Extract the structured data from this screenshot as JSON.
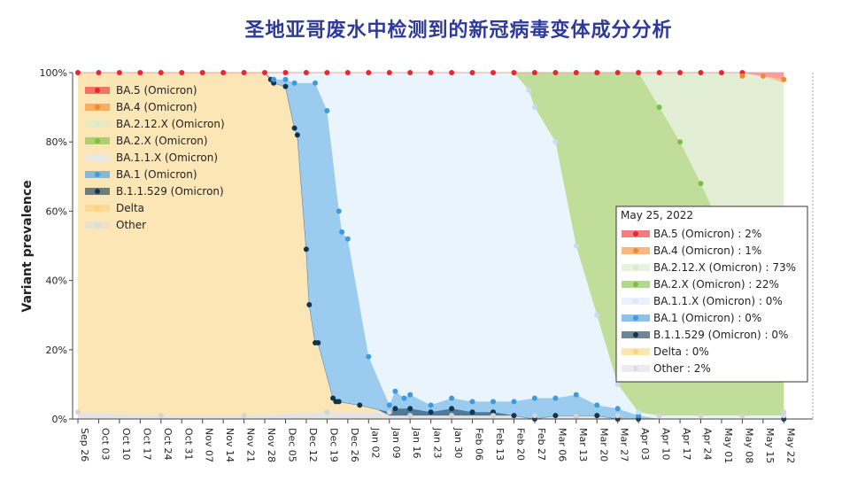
{
  "chart_data": {
    "type": "area",
    "title": "圣地亚哥废水中检测到的新冠病毒变体成分分析",
    "ylabel": "Variant prevalence",
    "xlabel": "",
    "ylim": [
      0,
      100
    ],
    "yticks": [
      "0%",
      "20%",
      "40%",
      "60%",
      "80%",
      "100%"
    ],
    "xtick_labels": [
      "Sep 26",
      "Oct 03",
      "Oct 10",
      "Oct 17",
      "Oct 24",
      "Oct 31",
      "Nov 07",
      "Nov 14",
      "Nov 21",
      "Nov 28",
      "Dec 05",
      "Dec 12",
      "Dec 19",
      "Dec 26",
      "Jan 02",
      "Jan 09",
      "Jan 16",
      "Jan 23",
      "Jan 30",
      "Feb 06",
      "Feb 13",
      "Feb 20",
      "Feb 27",
      "Mar 06",
      "Mar 13",
      "Mar 20",
      "Mar 27",
      "Apr 03",
      "Apr 10",
      "Apr 17",
      "Apr 24",
      "May 01",
      "May 08",
      "May 15",
      "May 22"
    ],
    "legend_placement": "top-left",
    "grid": false,
    "series_order_bottom_to_top": [
      "Other",
      "Delta",
      "B.1.1.529 (Omicron)",
      "BA.1 (Omicron)",
      "BA.1.1.X (Omicron)",
      "BA.2.X (Omicron)",
      "BA.2.12.X (Omicron)",
      "BA.4 (Omicron)",
      "BA.5 (Omicron)"
    ],
    "cumulative_boundaries": {
      "other": [
        [
          0,
          2
        ],
        [
          28,
          1
        ],
        [
          56,
          1
        ],
        [
          84,
          2
        ],
        [
          105,
          2
        ],
        [
          112,
          1
        ],
        [
          126,
          1
        ],
        [
          140,
          1
        ],
        [
          154,
          1
        ],
        [
          168,
          1
        ],
        [
          182,
          1
        ],
        [
          196,
          1
        ],
        [
          210,
          1
        ],
        [
          224,
          1
        ],
        [
          238,
          2
        ]
      ],
      "delta": [
        [
          0,
          100
        ],
        [
          56,
          100
        ],
        [
          63,
          100
        ],
        [
          70,
          99
        ],
        [
          73,
          90
        ],
        [
          80,
          70
        ],
        [
          84,
          20
        ],
        [
          87,
          5
        ],
        [
          91,
          5
        ],
        [
          98,
          4
        ],
        [
          105,
          1
        ],
        [
          126,
          1
        ],
        [
          168,
          1
        ],
        [
          238,
          1
        ]
      ],
      "b11529": [
        [
          0,
          100
        ],
        [
          63,
          100
        ],
        [
          65,
          98
        ],
        [
          66,
          97
        ],
        [
          70,
          96
        ],
        [
          73,
          84
        ],
        [
          74,
          82
        ],
        [
          77,
          49
        ],
        [
          78,
          33
        ],
        [
          80,
          22
        ],
        [
          81,
          22
        ],
        [
          86,
          6
        ],
        [
          87,
          5
        ],
        [
          88,
          5
        ],
        [
          95,
          4
        ],
        [
          105,
          2
        ],
        [
          107,
          3
        ],
        [
          112,
          3
        ],
        [
          119,
          2
        ],
        [
          126,
          3
        ],
        [
          133,
          2
        ],
        [
          140,
          2
        ],
        [
          147,
          1
        ],
        [
          154,
          0
        ],
        [
          161,
          1
        ],
        [
          168,
          1
        ],
        [
          175,
          1
        ],
        [
          182,
          0
        ],
        [
          189,
          0
        ],
        [
          238,
          0
        ]
      ],
      "ba1": [
        [
          0,
          100
        ],
        [
          63,
          100
        ],
        [
          66,
          98
        ],
        [
          70,
          98
        ],
        [
          73,
          97
        ],
        [
          80,
          97
        ],
        [
          84,
          89
        ],
        [
          88,
          60
        ],
        [
          89,
          54
        ],
        [
          91,
          52
        ],
        [
          98,
          18
        ],
        [
          105,
          4
        ],
        [
          107,
          8
        ],
        [
          110,
          6
        ],
        [
          112,
          7
        ],
        [
          119,
          4
        ],
        [
          126,
          6
        ],
        [
          133,
          5
        ],
        [
          140,
          5
        ],
        [
          147,
          5
        ],
        [
          154,
          6
        ],
        [
          161,
          6
        ],
        [
          168,
          7
        ],
        [
          175,
          4
        ],
        [
          182,
          3
        ],
        [
          189,
          1
        ],
        [
          196,
          0
        ],
        [
          238,
          0
        ]
      ],
      "ba1x": [
        [
          0,
          100
        ],
        [
          147,
          100
        ],
        [
          152,
          95
        ],
        [
          154,
          90
        ],
        [
          161,
          80
        ],
        [
          168,
          50
        ],
        [
          175,
          30
        ],
        [
          182,
          10
        ],
        [
          189,
          2
        ],
        [
          196,
          1
        ],
        [
          238,
          1
        ]
      ],
      "ba2x": [
        [
          0,
          100
        ],
        [
          189,
          100
        ],
        [
          196,
          90
        ],
        [
          203,
          80
        ],
        [
          210,
          68
        ],
        [
          217,
          55
        ],
        [
          224,
          40
        ],
        [
          231,
          28
        ],
        [
          238,
          24
        ]
      ],
      "ba212x": [
        [
          0,
          100
        ],
        [
          224,
          100
        ],
        [
          231,
          99
        ],
        [
          238,
          97
        ]
      ],
      "ba4": [
        [
          0,
          100
        ],
        [
          224,
          100
        ],
        [
          231,
          99
        ],
        [
          238,
          98
        ]
      ],
      "ba5": [
        [
          0,
          100
        ],
        [
          238,
          100
        ]
      ]
    },
    "series": [
      {
        "name": "BA.5 (Omicron)",
        "color": "#e8262f",
        "value_may25": "2%"
      },
      {
        "name": "BA.4 (Omicron)",
        "color": "#f5872c",
        "value_may25": "1%"
      },
      {
        "name": "BA.2.12.X (Omicron)",
        "color": "#d8ebc8",
        "value_may25": "73%"
      },
      {
        "name": "BA.2.X (Omicron)",
        "color": "#7ac143",
        "value_may25": "22%"
      },
      {
        "name": "BA.1.1.X (Omicron)",
        "color": "#dbe9f8",
        "value_may25": "0%"
      },
      {
        "name": "BA.1 (Omicron)",
        "color": "#3d9ae0",
        "value_may25": "0%"
      },
      {
        "name": "B.1.1.529 (Omicron)",
        "color": "#12354f",
        "value_may25": "0%"
      },
      {
        "name": "Delta",
        "color": "#fcd27b",
        "value_may25": "0%"
      },
      {
        "name": "Other",
        "color": "#dddddd",
        "value_may25": "2%"
      }
    ],
    "tooltip": {
      "date": "May 25, 2022",
      "rows": [
        "BA.5 (Omicron) : 2%",
        "BA.4 (Omicron) : 1%",
        "BA.2.12.X (Omicron) : 73%",
        "BA.2.X (Omicron) : 22%",
        "BA.1.1.X (Omicron) : 0%",
        "BA.1 (Omicron) : 0%",
        "B.1.1.529 (Omicron) : 0%",
        "Delta : 0%",
        "Other : 2%"
      ]
    }
  },
  "colors": {
    "title": "#2d3a9b",
    "other": "#e4e4e4",
    "delta": "#fde6b6",
    "b11529": "#4f7a9a",
    "ba1": "#9bcbee",
    "ba1x": "#eaf4fc",
    "ba2x": "#c0de99",
    "ba212x": "#e3efd5",
    "ba4": "#f9c48d",
    "ba5": "#f19fa2"
  }
}
